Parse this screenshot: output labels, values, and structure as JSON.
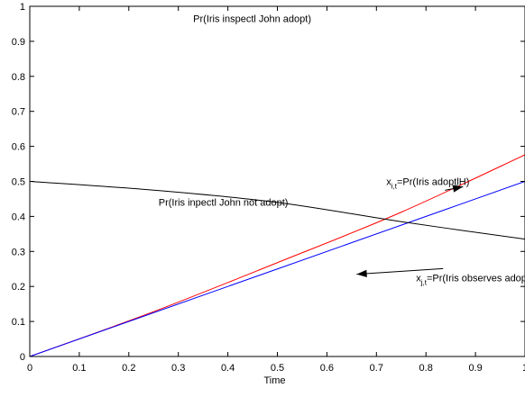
{
  "chart_data": {
    "type": "line",
    "title": "",
    "xlabel": "Time",
    "ylabel": "",
    "xlim": [
      0,
      1
    ],
    "ylim": [
      0,
      1
    ],
    "grid": false,
    "x_ticks": [
      "0",
      "0.1",
      "0.2",
      "0.3",
      "0.4",
      "0.5",
      "0.6",
      "0.7",
      "0.8",
      "0.9",
      "1"
    ],
    "y_ticks": [
      "0",
      "0.1",
      "0.2",
      "0.3",
      "0.4",
      "0.5",
      "0.6",
      "0.7",
      "0.8",
      "0.9",
      "1"
    ],
    "series": [
      {
        "color": "#ff0000",
        "x": [
          0,
          0.25,
          0.5,
          0.75,
          1
        ],
        "y": [
          0,
          0.128,
          0.268,
          0.412,
          0.576
        ]
      },
      {
        "color": "#0000ff",
        "x": [
          0,
          0.25,
          0.5,
          0.75,
          1
        ],
        "y": [
          0,
          0.125,
          0.25,
          0.375,
          0.5
        ]
      },
      {
        "color": "#000000",
        "x": [
          0,
          0.25,
          0.5,
          0.75,
          1
        ],
        "y": [
          0.5,
          0.475,
          0.44,
          0.385,
          0.335
        ]
      }
    ],
    "annotations": [
      {
        "text": "Pr(Iris inspectl John adopt)",
        "x": 0.33,
        "y": 0.955
      },
      {
        "text": "Pr(Iris inpectl John not adopt)",
        "x": 0.26,
        "y": 0.43
      },
      {
        "main": "x",
        "sub": "i,t",
        "rest": "=Pr(Iris adoptlH)",
        "x": 0.72,
        "y": 0.49,
        "arrow_to": [
          0.875,
          0.485
        ]
      },
      {
        "main": "x",
        "sub": "j,t",
        "rest": "=Pr(Iris observes adoptlH)",
        "x": 0.78,
        "y": 0.215,
        "arrow_to": [
          0.66,
          0.235
        ]
      }
    ]
  }
}
